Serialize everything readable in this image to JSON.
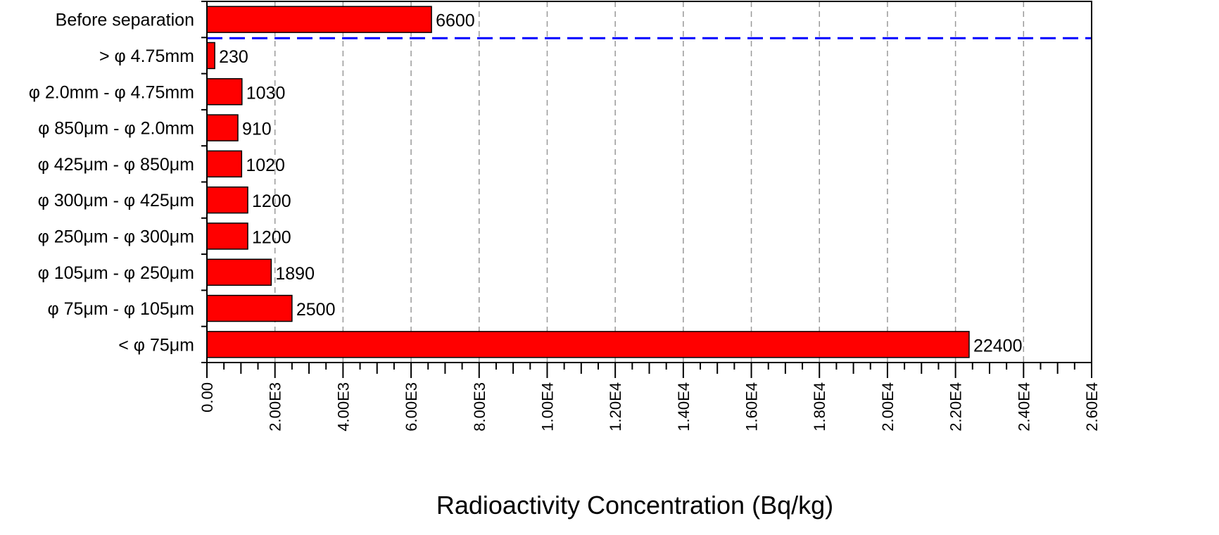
{
  "chart_data": {
    "type": "bar",
    "orientation": "horizontal",
    "categories": [
      "Before separation",
      "> φ 4.75mm",
      "φ 2.0mm - φ 4.75mm",
      "φ 850μm - φ 2.0mm",
      "φ 425μm - φ 850μm",
      "φ 300μm - φ 425μm",
      "φ 250μm - φ 300μm",
      "φ 105μm - φ 250μm",
      "φ 75μm - φ 105μm",
      "< φ 75μm"
    ],
    "values": [
      6600,
      230,
      1030,
      910,
      1020,
      1200,
      1200,
      1890,
      2500,
      22400
    ],
    "data_labels": [
      "6600",
      "230",
      "1030",
      "910",
      "1020",
      "1200",
      "1200",
      "1890",
      "2500",
      "22400"
    ],
    "xlabel": "Radioactivity Concentration (Bq/kg)",
    "ylabel": "",
    "xlim": [
      0,
      26000
    ],
    "x_ticks": [
      0,
      2000,
      4000,
      6000,
      8000,
      10000,
      12000,
      14000,
      16000,
      18000,
      20000,
      22000,
      24000,
      26000
    ],
    "x_tick_labels": [
      "0.00",
      "2.00E3",
      "4.00E3",
      "6.00E3",
      "8.00E3",
      "1.00E4",
      "1.20E4",
      "1.40E4",
      "1.60E4",
      "1.80E4",
      "2.00E4",
      "2.20E4",
      "2.40E4",
      "2.60E4"
    ],
    "grid": "vertical dashed",
    "separator_line": "dashed line between first and second category",
    "colors": {
      "bar": "#ff0000",
      "bar_edge": "#000000",
      "grid": "#999999",
      "separator": "#0000ff"
    }
  }
}
